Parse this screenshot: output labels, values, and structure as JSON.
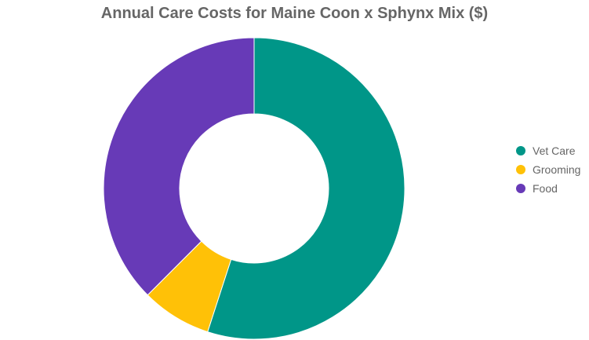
{
  "chart_data": {
    "type": "pie",
    "variant": "doughnut",
    "title": "Annual Care Costs for Maine Coon x Sphynx Mix ($)",
    "categories": [
      "Vet Care",
      "Grooming",
      "Food"
    ],
    "values": [
      550,
      75,
      375
    ],
    "colors": [
      "#009688",
      "#FFC107",
      "#673AB7"
    ],
    "legend_position": "right"
  }
}
